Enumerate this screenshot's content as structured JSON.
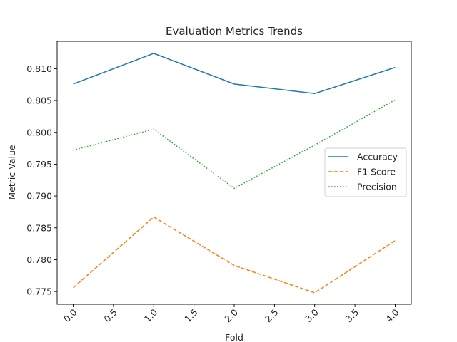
{
  "chart_data": {
    "type": "line",
    "title": "Evaluation Metrics Trends",
    "xlabel": "Fold",
    "ylabel": "Metric Value",
    "x": [
      0,
      1,
      2,
      3,
      4
    ],
    "xlim": [
      -0.2,
      4.2
    ],
    "ylim": [
      0.773,
      0.8143
    ],
    "x_ticks": [
      "0.0",
      "0.5",
      "1.0",
      "1.5",
      "2.0",
      "2.5",
      "3.0",
      "3.5",
      "4.0"
    ],
    "x_tick_values": [
      0,
      0.5,
      1,
      1.5,
      2,
      2.5,
      3,
      3.5,
      4
    ],
    "y_ticks": [
      "0.775",
      "0.780",
      "0.785",
      "0.790",
      "0.795",
      "0.800",
      "0.805",
      "0.810"
    ],
    "y_tick_values": [
      0.775,
      0.78,
      0.785,
      0.79,
      0.795,
      0.8,
      0.805,
      0.81
    ],
    "grid": false,
    "legend_position": "center-right",
    "series": [
      {
        "name": "Accuracy",
        "values": [
          0.8076,
          0.8124,
          0.8076,
          0.8061,
          0.8102
        ],
        "color": "#1f77b4",
        "style": "solid"
      },
      {
        "name": "F1 Score",
        "values": [
          0.7756,
          0.7867,
          0.7791,
          0.7748,
          0.783
        ],
        "color": "#ff7f0e",
        "style": "dashed"
      },
      {
        "name": "Precision",
        "values": [
          0.7972,
          0.8005,
          0.7912,
          0.798,
          0.8051
        ],
        "color": "#2ca02c",
        "style": "dotted"
      }
    ]
  }
}
